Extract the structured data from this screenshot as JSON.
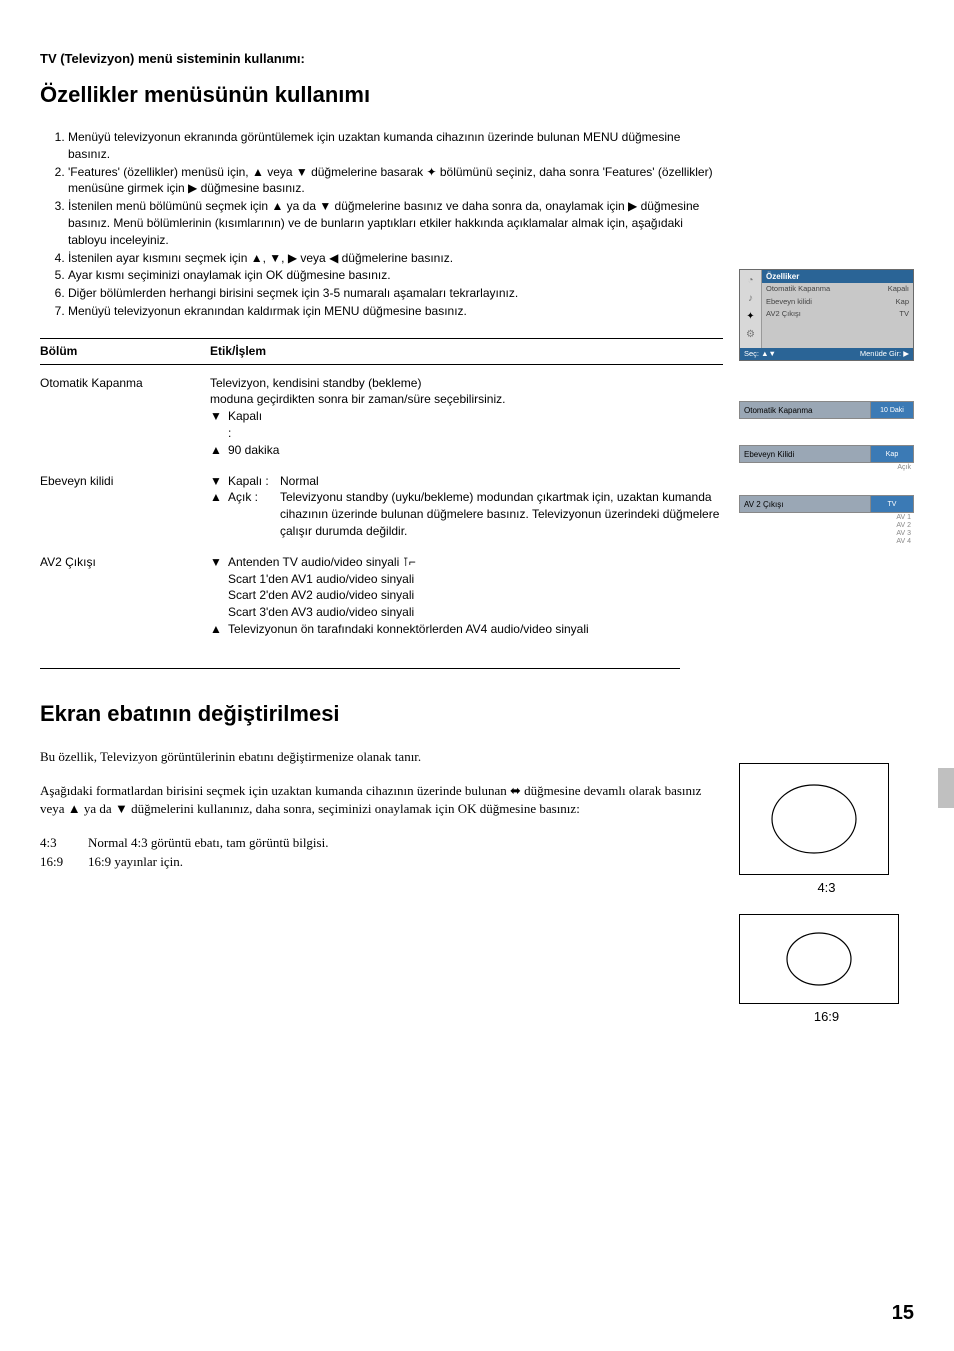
{
  "section_header": "TV (Televizyon) menü sisteminin kullanımı:",
  "heading1": "Özellikler menüsünün kullanımı",
  "steps": [
    "Menüyü televizyonun ekranında görüntülemek için uzaktan kumanda cihazının üzerinde bulunan MENU düğmesine basınız.",
    "'Features' (özellikler) menüsü için, ▲ veya ▼ düğmelerine basarak ✦ bölümünü seçiniz, daha sonra 'Features' (özellikler) menüsüne girmek için ▶ düğmesine basınız.",
    "İstenilen menü bölümünü seçmek için ▲ ya da ▼ düğmelerine basınız ve daha sonra da, onaylamak için ▶ düğmesine basınız.  Menü bölümlerinin (kısımlarının) ve de bunların yaptıkları etkiler hakkında açıklamalar almak için, aşağıdaki tabloyu inceleyiniz.",
    "İstenilen ayar kısmını seçmek için ▲, ▼, ▶ veya ◀ düğmelerine basınız.",
    "Ayar kısmı seçiminizi onaylamak için OK düğmesine basınız.",
    "Diğer bölümlerden herhangi birisini seçmek için 3-5 numaralı aşamaları tekrarlayınız.",
    "Menüyü televizyonun ekranından kaldırmak için MENU düğmesine basınız."
  ],
  "table": {
    "header_bolum": "Bölüm",
    "header_etik": "Etik/İşlem",
    "rows": [
      {
        "bolum": "Otomatik Kapanma",
        "lines": [
          {
            "type": "plain",
            "text": "Televizyon, kendisini standby (bekleme)"
          },
          {
            "type": "plain",
            "text": "moduna geçirdikten sonra bir zaman/süre seçebilirsiniz."
          },
          {
            "type": "arrow",
            "arrow": "▼",
            "text": "Kapalı"
          },
          {
            "type": "indent",
            "text": ":"
          },
          {
            "type": "arrow",
            "arrow": "▲",
            "text": "90 dakika"
          }
        ]
      },
      {
        "bolum": "Ebeveyn kilidi",
        "lines": [
          {
            "type": "labeled",
            "arrow": "▼",
            "label": "Kapalı :",
            "text": "Normal"
          },
          {
            "type": "labeled",
            "arrow": "▲",
            "label": "Açık :",
            "text": "Televizyonu standby (uyku/bekleme) modundan çıkartmak için, uzaktan kumanda cihazının üzerinde bulunan düğmelere basınız. Televizyonun üzerindeki düğmelere çalışır durumda değildir."
          }
        ]
      },
      {
        "bolum": "AV2 Çıkışı",
        "lines": [
          {
            "type": "arrow",
            "arrow": "▼",
            "text": "Antenden TV audio/video sinyali ⊺⌐"
          },
          {
            "type": "indent",
            "text": "Scart 1'den AV1 audio/video sinyali"
          },
          {
            "type": "indent",
            "text": "Scart 2'den AV2 audio/video sinyali"
          },
          {
            "type": "indent",
            "text": "Scart 3'den AV3 audio/video sinyali"
          },
          {
            "type": "arrow",
            "arrow": "▲",
            "text": "Televizyonun ön tarafındaki konnektörlerden AV4 audio/video sinyali"
          }
        ]
      }
    ]
  },
  "osd": {
    "title": "Özelliker",
    "items": [
      {
        "label": "Otomatik Kapanma",
        "value": "Kapalı"
      },
      {
        "label": "Ebeveyn kilidi",
        "value": "Kap"
      },
      {
        "label": "AV2 Çıkışı",
        "value": "TV"
      }
    ],
    "footer_left": "Seç: ▲▼",
    "footer_right": "Menüde Gir: ▶"
  },
  "mini1": {
    "label": "Otomatik Kapanma",
    "value": "10 Daki"
  },
  "mini2": {
    "label": "Ebeveyn Kilidi",
    "value": "Kap",
    "extra": "Açık"
  },
  "mini3": {
    "label": "AV 2 Çıkışı",
    "value": "TV",
    "extra": [
      "AV 1",
      "AV 2",
      "AV 3",
      "AV 4"
    ]
  },
  "heading2": "Ekran ebatının değiştirilmesi",
  "intro2": "Bu özellik, Televizyon görüntülerinin ebatını değiştirmenize olanak tanır.",
  "para2": "Aşağıdaki formatlardan birisini seçmek için uzaktan kumanda cihazının üzerinde bulunan ⬌ düğmesine devamlı olarak basınız veya ▲ ya da ▼ düğmelerini kullanınız, daha sonra, seçiminizi onaylamak için OK düğmesine basınız:",
  "formats": [
    {
      "label": "4:3",
      "desc": "Normal 4:3 görüntü ebatı, tam görüntü bilgisi."
    },
    {
      "label": "16:9",
      "desc": "16:9 yayınlar için."
    }
  ],
  "aspect_labels": {
    "a43": "4:3",
    "a169": "16:9"
  },
  "page_number": "15"
}
